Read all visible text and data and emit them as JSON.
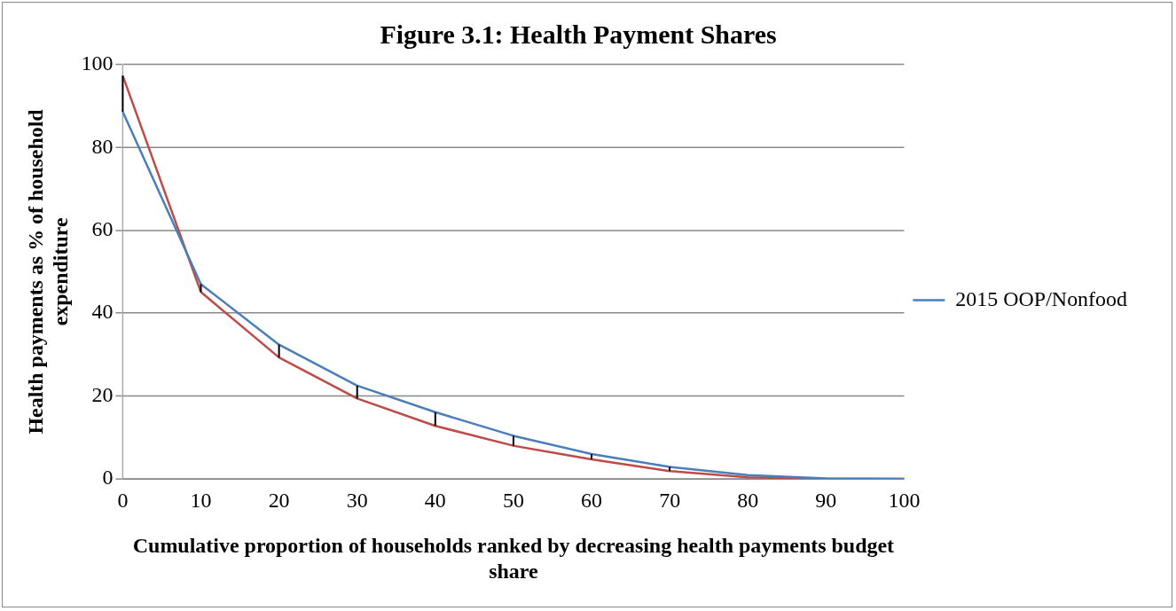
{
  "chart_data": {
    "type": "line",
    "title": "Figure 3.1: Health Payment Shares",
    "xlabel": "Cumulative proportion of households ranked by decreasing health payments budget share",
    "ylabel": "Health payments as % of household expenditure",
    "categories": [
      "0",
      "10",
      "20",
      "30",
      "40",
      "50",
      "60",
      "70",
      "80",
      "90",
      "100"
    ],
    "series": [
      {
        "name": "2015 OOP/Nonfood",
        "color": "#4a7ebb",
        "values": [
          88.6,
          47.0,
          32.4,
          22.5,
          16.1,
          10.4,
          6.0,
          2.9,
          0.9,
          0.1,
          0
        ],
        "errors": [
          [
            88.6,
            97.3
          ],
          [
            45.1,
            47.0
          ],
          [
            29.3,
            32.4
          ],
          [
            19.4,
            22.5
          ],
          [
            12.8,
            16.1
          ],
          [
            8.0,
            10.4
          ],
          [
            4.7,
            6.0
          ],
          [
            1.9,
            2.9
          ],
          null,
          null,
          null
        ]
      },
      {
        "color": "#be4b48",
        "values": [
          97.3,
          45.1,
          29.3,
          19.4,
          12.8,
          8.0,
          4.7,
          1.9,
          0.4,
          0,
          0
        ]
      }
    ],
    "ylim": [
      0,
      100
    ],
    "yticks": [
      0,
      20,
      40,
      60,
      80,
      100
    ],
    "grid": "y",
    "legend": "right",
    "marker": "none",
    "line_style": "solid"
  }
}
